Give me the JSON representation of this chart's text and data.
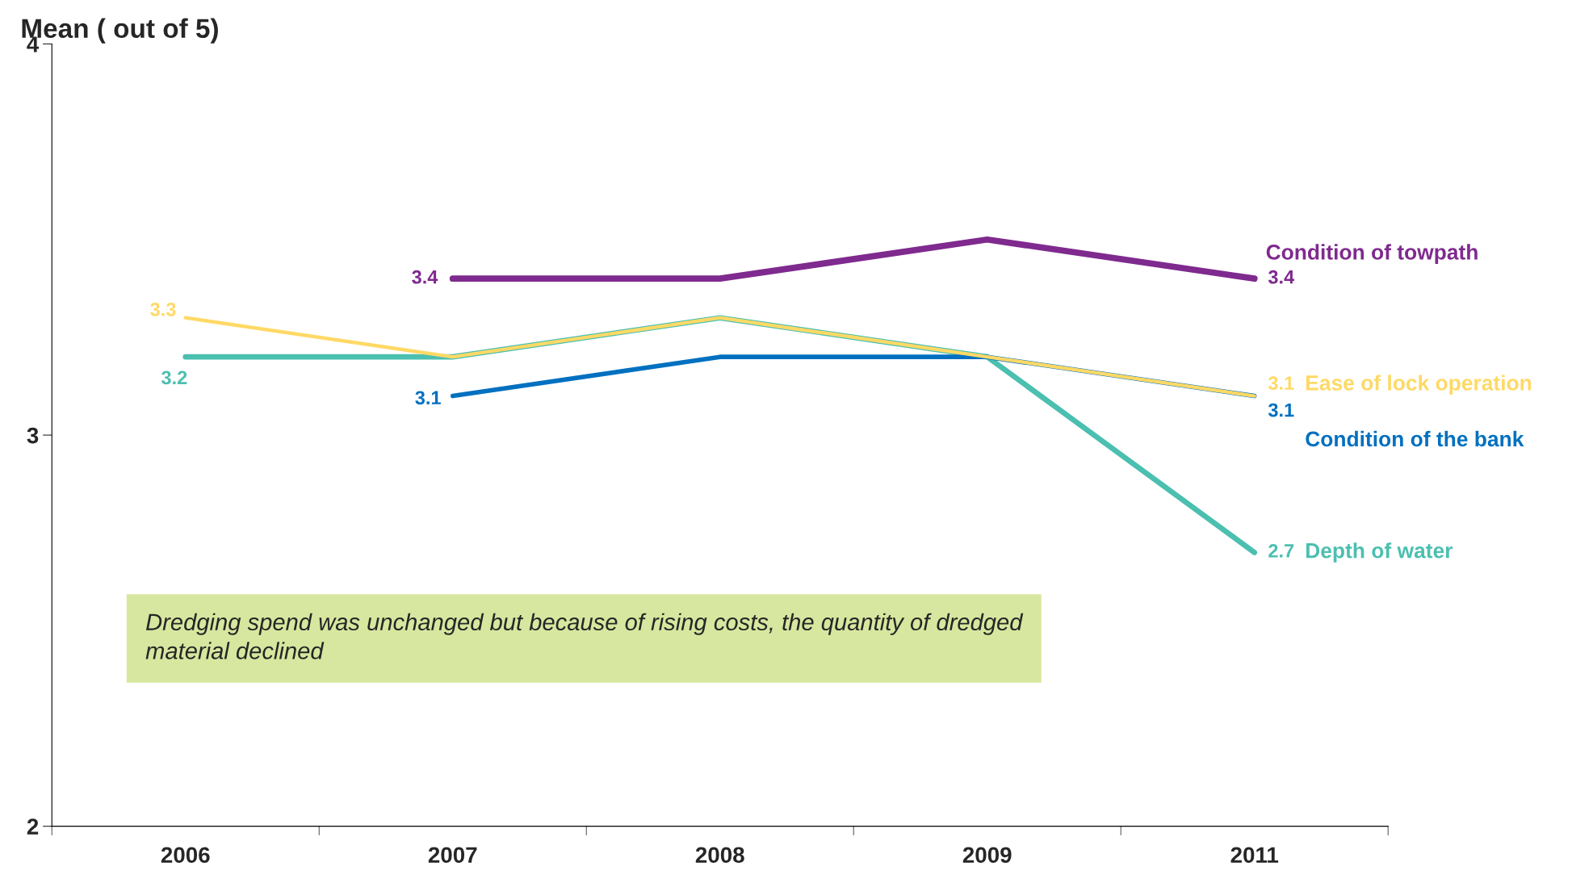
{
  "chart_data": {
    "type": "line",
    "title": "Mean ( out of 5)",
    "categories": [
      "2006",
      "2007",
      "2008",
      "2009",
      "2011"
    ],
    "series": [
      {
        "name": "Condition of towpath",
        "color": "#7f2a8e",
        "values": [
          null,
          3.4,
          3.4,
          3.5,
          3.4
        ],
        "value_labels": [
          null,
          "3.4",
          null,
          null,
          "3.4"
        ]
      },
      {
        "name": "Depth of water",
        "color": "#4bbfb0",
        "values": [
          3.2,
          3.2,
          3.3,
          3.2,
          2.7
        ],
        "value_labels": [
          "3.2",
          null,
          null,
          null,
          "2.7"
        ]
      },
      {
        "name": "Condition of the bank",
        "color": "#0070c0",
        "values": [
          null,
          3.1,
          3.2,
          3.2,
          3.1
        ],
        "value_labels": [
          null,
          "3.1",
          null,
          null,
          "3.1"
        ]
      },
      {
        "name": "Ease of lock operation",
        "color": "#ffd966",
        "values": [
          3.3,
          3.2,
          3.3,
          3.2,
          3.1
        ],
        "value_labels": [
          "3.3",
          null,
          null,
          null,
          "3.1"
        ]
      }
    ],
    "ylim": [
      2,
      4
    ],
    "yticks": [
      2,
      3,
      4
    ],
    "grid": false,
    "legend": false,
    "marker": "none",
    "line_style": "solid",
    "annotations": [
      "Dredging spend was unchanged but because of rising costs, the quantity of dredged material declined"
    ]
  }
}
